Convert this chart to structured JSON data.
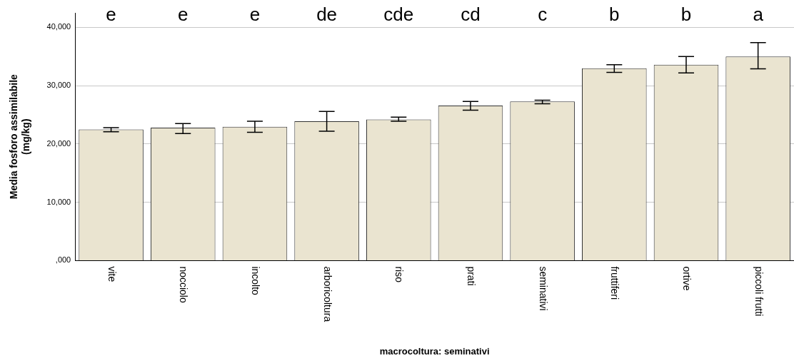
{
  "chart_data": {
    "type": "bar",
    "xlabel": "macrocoltura: seminativi",
    "ylabel": "Media fosforo assimilabile\n(mg/kg)",
    "categories": [
      "vite",
      "nocciolo",
      "incolto",
      "arboricoltura",
      "riso",
      "prati",
      "seminativi",
      "fruttiferi",
      "ortive",
      "piccoli frutti"
    ],
    "values": [
      22500,
      22800,
      22950,
      23900,
      24200,
      26600,
      27300,
      33000,
      33600,
      35000
    ],
    "errors": [
      [
        22100,
        22800
      ],
      [
        21800,
        23500
      ],
      [
        22000,
        23900
      ],
      [
        22200,
        25600
      ],
      [
        23900,
        24600
      ],
      [
        25800,
        27300
      ],
      [
        26900,
        27500
      ],
      [
        32300,
        33600
      ],
      [
        32200,
        35000
      ],
      [
        32900,
        37400
      ]
    ],
    "color": "#eae4d0",
    "ylim": [
      0,
      42500
    ],
    "yticks": [
      {
        "value": 0,
        "label": ",000"
      },
      {
        "value": 10000,
        "label": "10,000"
      },
      {
        "value": 20000,
        "label": "20,000"
      },
      {
        "value": 30000,
        "label": "30,000"
      },
      {
        "value": 40000,
        "label": "40,000"
      }
    ],
    "grid": "y",
    "legend": false,
    "annotations": [
      "e",
      "e",
      "e",
      "de",
      "cde",
      "cd",
      "c",
      "b",
      "b",
      "a"
    ]
  }
}
